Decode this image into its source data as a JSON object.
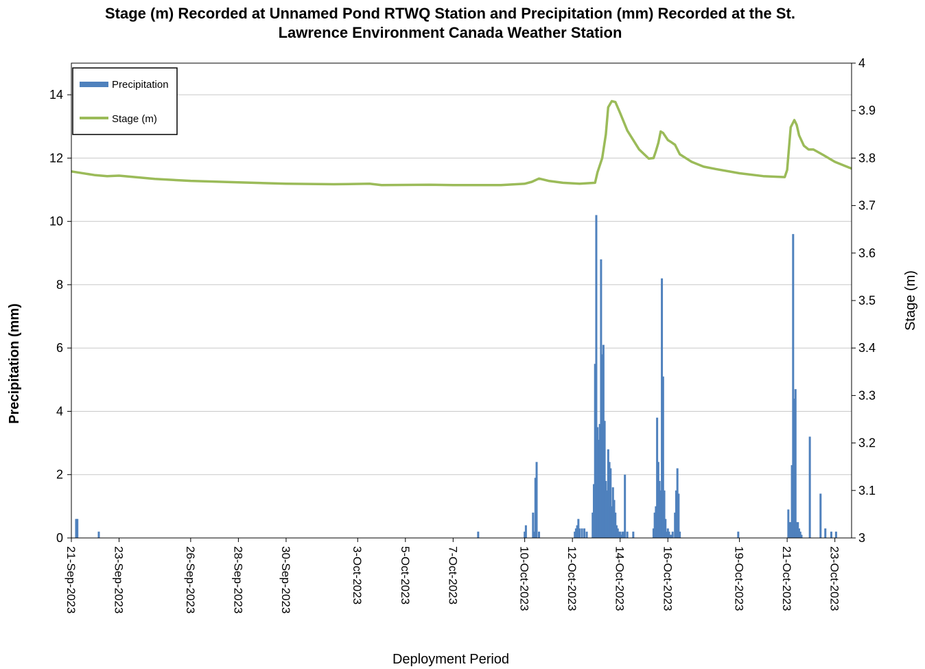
{
  "chart_data": {
    "type": "bar+line",
    "title_line1": "Stage (m) Recorded at Unnamed Pond RTWQ Station and Precipitation (mm) Recorded at the St.",
    "title_line2": "Lawrence Environment Canada Weather Station",
    "xlabel": "Deployment Period",
    "ylabel_left": "Precipitation (mm)",
    "ylabel_right": "Stage (m)",
    "ylim_left": [
      0,
      15
    ],
    "ylim_right": [
      3,
      4
    ],
    "yticks_left": [
      "0",
      "2",
      "4",
      "6",
      "8",
      "10",
      "12",
      "14"
    ],
    "yticks_right": [
      "3",
      "3.1",
      "3.2",
      "3.3",
      "3.4",
      "3.5",
      "3.6",
      "3.7",
      "3.8",
      "3.9",
      "4"
    ],
    "x_range_days": [
      0,
      32.7
    ],
    "xticks": [
      {
        "day": 0,
        "label": "21-Sep-2023"
      },
      {
        "day": 2,
        "label": "23-Sep-2023"
      },
      {
        "day": 5,
        "label": "26-Sep-2023"
      },
      {
        "day": 7,
        "label": "28-Sep-2023"
      },
      {
        "day": 9,
        "label": "30-Sep-2023"
      },
      {
        "day": 12,
        "label": "3-Oct-2023"
      },
      {
        "day": 14,
        "label": "5-Oct-2023"
      },
      {
        "day": 16,
        "label": "7-Oct-2023"
      },
      {
        "day": 19,
        "label": "10-Oct-2023"
      },
      {
        "day": 21,
        "label": "12-Oct-2023"
      },
      {
        "day": 23,
        "label": "14-Oct-2023"
      },
      {
        "day": 25,
        "label": "16-Oct-2023"
      },
      {
        "day": 28,
        "label": "19-Oct-2023"
      },
      {
        "day": 30,
        "label": "21-Oct-2023"
      },
      {
        "day": 32,
        "label": "23-Oct-2023"
      }
    ],
    "grid": true,
    "legend": {
      "placement": "top-left",
      "entries": [
        "Precipitation",
        "Stage (m)"
      ]
    },
    "colors": {
      "precipitation": "#4f81bd",
      "stage": "#9bbb59",
      "grid": "#c8c8c8"
    },
    "series": [
      {
        "name": "Precipitation",
        "type": "bar",
        "axis": "left",
        "x": [
          0.2,
          0.25,
          1.15,
          17.05,
          19.0,
          19.05,
          19.35,
          19.4,
          19.45,
          19.5,
          19.6,
          21.1,
          21.15,
          21.2,
          21.25,
          21.3,
          21.4,
          21.5,
          21.6,
          21.85,
          21.9,
          21.95,
          22.0,
          22.05,
          22.1,
          22.15,
          22.2,
          22.25,
          22.3,
          22.35,
          22.4,
          22.45,
          22.5,
          22.55,
          22.6,
          22.65,
          22.7,
          22.75,
          22.8,
          22.85,
          22.9,
          22.95,
          23.0,
          23.05,
          23.1,
          23.15,
          23.2,
          23.3,
          23.55,
          24.4,
          24.45,
          24.5,
          24.55,
          24.6,
          24.65,
          24.7,
          24.75,
          24.8,
          24.85,
          24.9,
          24.95,
          25.0,
          25.05,
          25.1,
          25.15,
          25.2,
          25.3,
          25.35,
          25.4,
          25.45,
          25.5,
          27.95,
          30.05,
          30.1,
          30.15,
          30.2,
          30.25,
          30.3,
          30.35,
          30.4,
          30.45,
          30.5,
          30.55,
          30.6,
          30.95,
          31.4,
          31.6,
          31.85,
          32.05
        ],
        "values": [
          0.6,
          0.6,
          0.2,
          0.2,
          0.2,
          0.4,
          0.8,
          0.2,
          1.9,
          2.4,
          0.2,
          0.2,
          0.3,
          0.4,
          0.6,
          0.3,
          0.3,
          0.3,
          0.2,
          0.8,
          1.7,
          5.5,
          10.2,
          3.5,
          3.1,
          3.6,
          8.8,
          5.8,
          6.1,
          3.7,
          1.8,
          1.5,
          2.8,
          2.4,
          2.2,
          1.0,
          1.6,
          1.2,
          0.8,
          0.4,
          0.3,
          0.2,
          0.2,
          0.1,
          0.2,
          0.2,
          2.0,
          0.2,
          0.2,
          0.3,
          0.8,
          1.0,
          3.8,
          2.4,
          1.8,
          1.5,
          8.2,
          5.1,
          1.5,
          0.6,
          0.2,
          0.3,
          0.2,
          0.1,
          0.1,
          0.2,
          0.8,
          1.5,
          2.2,
          1.4,
          0.2,
          0.2,
          0.9,
          0.5,
          0.5,
          2.3,
          9.6,
          4.4,
          4.7,
          0.5,
          0.5,
          0.3,
          0.2,
          0.1,
          3.2,
          1.4,
          0.3,
          0.2,
          0.2
        ]
      },
      {
        "name": "Stage (m)",
        "type": "line",
        "axis": "right",
        "x": [
          0,
          1.0,
          1.5,
          2.0,
          3.5,
          5.0,
          7.0,
          9.0,
          11.0,
          12.5,
          13.0,
          15.0,
          16.0,
          17.0,
          18.0,
          19.0,
          19.3,
          19.6,
          20.0,
          20.6,
          21.3,
          21.95,
          22.05,
          22.25,
          22.4,
          22.5,
          22.65,
          22.8,
          23.0,
          23.3,
          23.8,
          24.2,
          24.4,
          24.5,
          24.6,
          24.7,
          24.8,
          25.0,
          25.1,
          25.3,
          25.5,
          26.0,
          26.5,
          27.0,
          28.0,
          29.0,
          29.9,
          30.0,
          30.15,
          30.3,
          30.4,
          30.5,
          30.7,
          30.9,
          31.1,
          31.5,
          32.0,
          32.5,
          32.7
        ],
        "values": [
          3.772,
          3.764,
          3.762,
          3.763,
          3.756,
          3.752,
          3.749,
          3.746,
          3.745,
          3.746,
          3.743,
          3.744,
          3.743,
          3.743,
          3.743,
          3.746,
          3.75,
          3.757,
          3.752,
          3.748,
          3.746,
          3.748,
          3.77,
          3.8,
          3.85,
          3.907,
          3.92,
          3.918,
          3.895,
          3.858,
          3.818,
          3.799,
          3.8,
          3.815,
          3.832,
          3.856,
          3.853,
          3.838,
          3.835,
          3.828,
          3.808,
          3.792,
          3.782,
          3.777,
          3.768,
          3.762,
          3.76,
          3.775,
          3.865,
          3.88,
          3.87,
          3.848,
          3.826,
          3.818,
          3.818,
          3.807,
          3.792,
          3.782,
          3.778
        ]
      }
    ]
  }
}
